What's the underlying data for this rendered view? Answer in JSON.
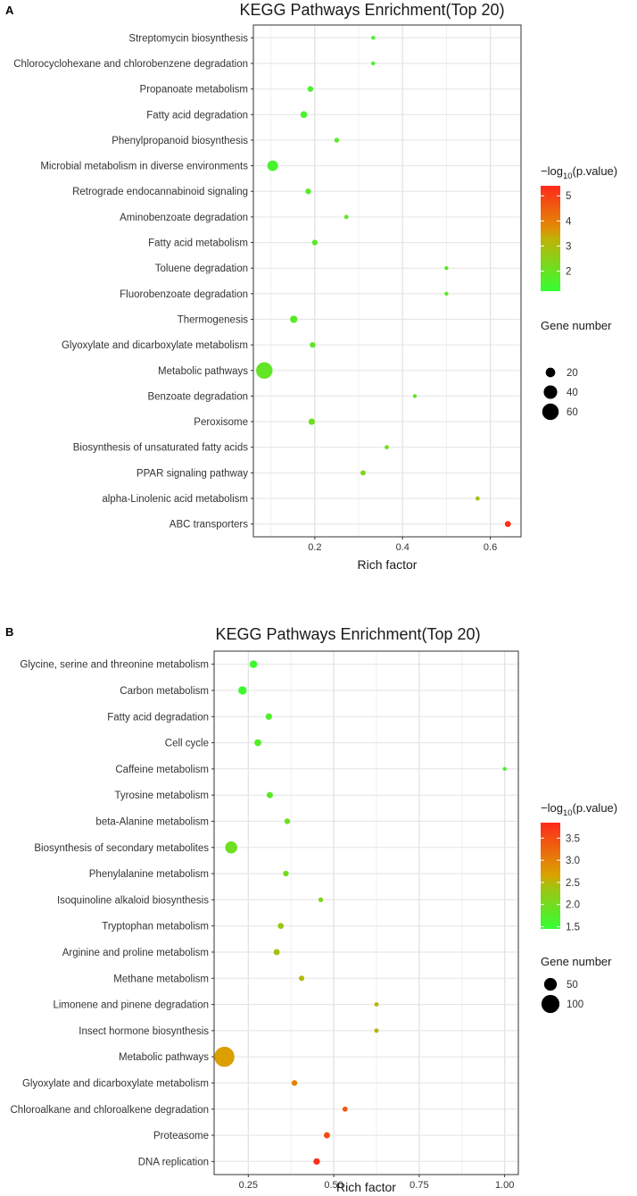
{
  "chart_data": [
    {
      "panel": "A",
      "type": "scatter",
      "title": "KEGG Pathways Enrichment(Top 20)",
      "xlabel": "Rich factor",
      "ylabel": "",
      "xlim": [
        0.06,
        0.67
      ],
      "xticks": [
        0.2,
        0.4,
        0.6
      ],
      "xtick_labels": [
        "0.2",
        "0.4",
        "0.6"
      ],
      "color_legend": {
        "title_prefix": "−log",
        "title_sub": "10",
        "title_suffix": "(p.value)",
        "range": [
          1.2,
          5.4
        ],
        "ticks": [
          2,
          3,
          4,
          5
        ],
        "low_color": "#33ff33",
        "high_color": "#ff2a1a"
      },
      "size_legend": {
        "title": "Gene number",
        "values": [
          20,
          40,
          60
        ],
        "range": [
          5,
          70
        ]
      },
      "points": [
        {
          "pathway": "Streptomycin biosynthesis",
          "rich_factor": 0.333,
          "neg_log10_p": 1.5,
          "gene_number": 2
        },
        {
          "pathway": "Chlorocyclohexane and chlorobenzene degradation",
          "rich_factor": 0.333,
          "neg_log10_p": 1.5,
          "gene_number": 2
        },
        {
          "pathway": "Propanoate metabolism",
          "rich_factor": 0.19,
          "neg_log10_p": 1.6,
          "gene_number": 7
        },
        {
          "pathway": "Fatty acid degradation",
          "rich_factor": 0.175,
          "neg_log10_p": 1.6,
          "gene_number": 10
        },
        {
          "pathway": "Phenylpropanoid biosynthesis",
          "rich_factor": 0.25,
          "neg_log10_p": 1.7,
          "gene_number": 5
        },
        {
          "pathway": "Microbial metabolism in diverse environments",
          "rich_factor": 0.104,
          "neg_log10_p": 1.5,
          "gene_number": 25
        },
        {
          "pathway": "Retrograde endocannabinoid signaling",
          "rich_factor": 0.185,
          "neg_log10_p": 1.7,
          "gene_number": 7
        },
        {
          "pathway": "Aminobenzoate degradation",
          "rich_factor": 0.272,
          "neg_log10_p": 1.8,
          "gene_number": 4
        },
        {
          "pathway": "Fatty acid metabolism",
          "rich_factor": 0.2,
          "neg_log10_p": 1.8,
          "gene_number": 7
        },
        {
          "pathway": "Toluene degradation",
          "rich_factor": 0.5,
          "neg_log10_p": 1.8,
          "gene_number": 1
        },
        {
          "pathway": "Fluorobenzoate degradation",
          "rich_factor": 0.5,
          "neg_log10_p": 1.8,
          "gene_number": 1
        },
        {
          "pathway": "Thermogenesis",
          "rich_factor": 0.152,
          "neg_log10_p": 1.8,
          "gene_number": 12
        },
        {
          "pathway": "Glyoxylate and dicarboxylate metabolism",
          "rich_factor": 0.195,
          "neg_log10_p": 1.9,
          "gene_number": 7
        },
        {
          "pathway": "Metabolic pathways",
          "rich_factor": 0.085,
          "neg_log10_p": 1.9,
          "gene_number": 60
        },
        {
          "pathway": "Benzoate degradation",
          "rich_factor": 0.428,
          "neg_log10_p": 2.0,
          "gene_number": 3
        },
        {
          "pathway": "Peroxisome",
          "rich_factor": 0.193,
          "neg_log10_p": 2.1,
          "gene_number": 9
        },
        {
          "pathway": "Biosynthesis of unsaturated fatty acids",
          "rich_factor": 0.364,
          "neg_log10_p": 2.1,
          "gene_number": 4
        },
        {
          "pathway": "PPAR signaling pathway",
          "rich_factor": 0.31,
          "neg_log10_p": 2.3,
          "gene_number": 6
        },
        {
          "pathway": "alpha-Linolenic acid metabolism",
          "rich_factor": 0.571,
          "neg_log10_p": 2.9,
          "gene_number": 4
        },
        {
          "pathway": "ABC transporters",
          "rich_factor": 0.64,
          "neg_log10_p": 5.3,
          "gene_number": 8
        }
      ]
    },
    {
      "panel": "B",
      "type": "scatter",
      "title": "KEGG Pathways Enrichment(Top 20)",
      "xlabel": "Rich factor",
      "ylabel": "",
      "xlim": [
        0.15,
        1.04
      ],
      "xticks": [
        0.25,
        0.5,
        0.75,
        1.0
      ],
      "xtick_labels": [
        "0.25",
        "0.50",
        "0.75",
        "1.00"
      ],
      "color_legend": {
        "title_prefix": "−log",
        "title_sub": "10",
        "title_suffix": "(p.value)",
        "range": [
          1.45,
          3.85
        ],
        "ticks": [
          1.5,
          2.0,
          2.5,
          3.0,
          3.5
        ],
        "low_color": "#33ff33",
        "high_color": "#ff2a1a"
      },
      "size_legend": {
        "title": "Gene number",
        "values": [
          50,
          100
        ],
        "range": [
          5,
          130
        ]
      },
      "points": [
        {
          "pathway": "Glycine, serine and threonine metabolism",
          "rich_factor": 0.265,
          "neg_log10_p": 1.55,
          "gene_number": 18
        },
        {
          "pathway": "Carbon metabolism",
          "rich_factor": 0.233,
          "neg_log10_p": 1.55,
          "gene_number": 22
        },
        {
          "pathway": "Fatty acid degradation",
          "rich_factor": 0.31,
          "neg_log10_p": 1.7,
          "gene_number": 13
        },
        {
          "pathway": "Cell cycle",
          "rich_factor": 0.278,
          "neg_log10_p": 1.7,
          "gene_number": 15
        },
        {
          "pathway": "Caffeine metabolism",
          "rich_factor": 1.0,
          "neg_log10_p": 1.7,
          "gene_number": 2
        },
        {
          "pathway": "Tyrosine metabolism",
          "rich_factor": 0.313,
          "neg_log10_p": 1.8,
          "gene_number": 12
        },
        {
          "pathway": "beta-Alanine metabolism",
          "rich_factor": 0.364,
          "neg_log10_p": 1.9,
          "gene_number": 10
        },
        {
          "pathway": "Biosynthesis of secondary metabolites",
          "rich_factor": 0.2,
          "neg_log10_p": 1.95,
          "gene_number": 45
        },
        {
          "pathway": "Phenylalanine metabolism",
          "rich_factor": 0.36,
          "neg_log10_p": 2.0,
          "gene_number": 10
        },
        {
          "pathway": "Isoquinoline alkaloid biosynthesis",
          "rich_factor": 0.462,
          "neg_log10_p": 2.1,
          "gene_number": 7
        },
        {
          "pathway": "Tryptophan metabolism",
          "rich_factor": 0.345,
          "neg_log10_p": 2.3,
          "gene_number": 11
        },
        {
          "pathway": "Arginine and proline metabolism",
          "rich_factor": 0.333,
          "neg_log10_p": 2.4,
          "gene_number": 12
        },
        {
          "pathway": "Methane metabolism",
          "rich_factor": 0.406,
          "neg_log10_p": 2.5,
          "gene_number": 9
        },
        {
          "pathway": "Limonene and pinene degradation",
          "rich_factor": 0.625,
          "neg_log10_p": 2.6,
          "gene_number": 6
        },
        {
          "pathway": "Insect hormone biosynthesis",
          "rich_factor": 0.625,
          "neg_log10_p": 2.6,
          "gene_number": 6
        },
        {
          "pathway": "Metabolic pathways",
          "rich_factor": 0.18,
          "neg_log10_p": 2.7,
          "gene_number": 125
        },
        {
          "pathway": "Glyoxylate and dicarboxylate metabolism",
          "rich_factor": 0.385,
          "neg_log10_p": 3.0,
          "gene_number": 10
        },
        {
          "pathway": "Chloroalkane and chloroalkene degradation",
          "rich_factor": 0.533,
          "neg_log10_p": 3.4,
          "gene_number": 8
        },
        {
          "pathway": "Proteasome",
          "rich_factor": 0.48,
          "neg_log10_p": 3.5,
          "gene_number": 12
        },
        {
          "pathway": "DNA replication",
          "rich_factor": 0.45,
          "neg_log10_p": 3.8,
          "gene_number": 13
        }
      ]
    }
  ]
}
